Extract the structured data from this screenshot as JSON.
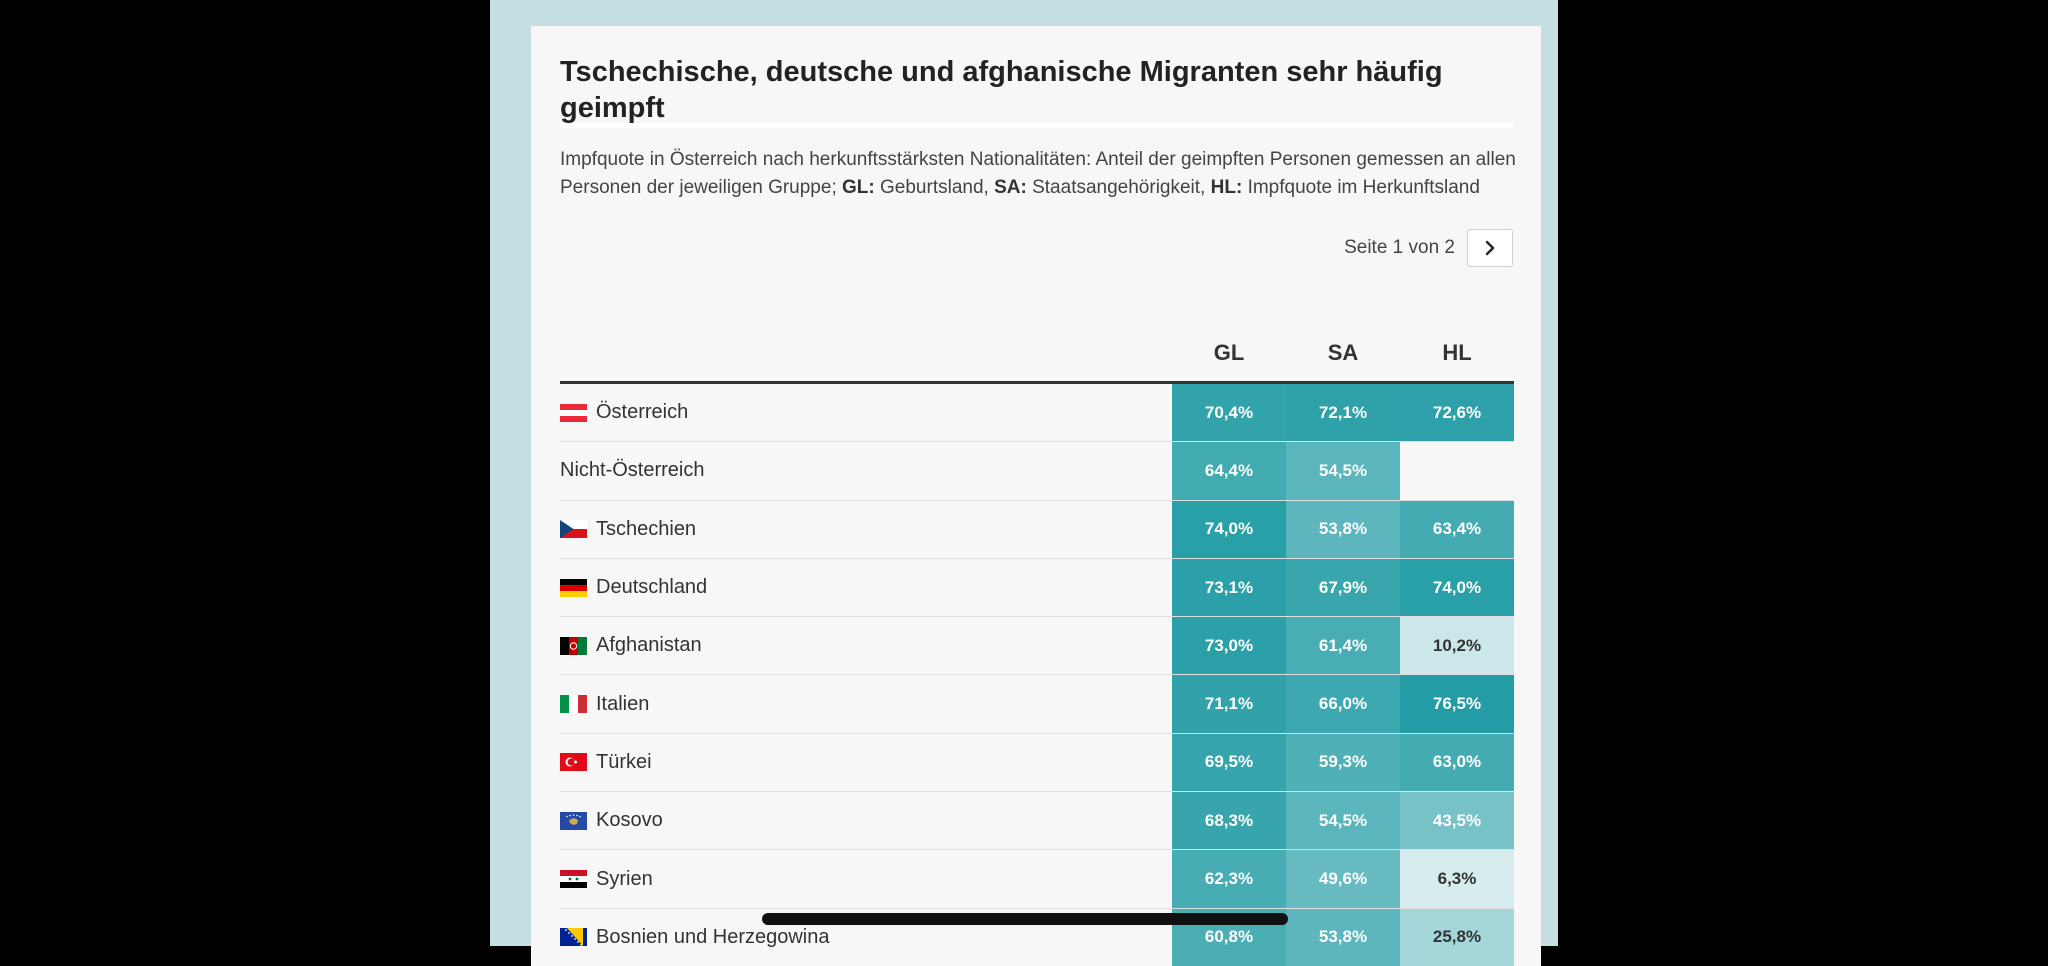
{
  "colors": {
    "background": "#000000",
    "backdrop": "#c5dfe3",
    "card": "#f7f7f7",
    "teal_dark": "#1e9aa3",
    "teal_light": "#e3f1f3"
  },
  "header": {
    "title": "Tschechische, deutsche und afghanische Migranten sehr häufig geimpft",
    "subtitle_text": "Impfquote in Österreich nach herkunftsstärksten Nationalitäten: Anteil der geimpften Personen gemessen an allen Personen der jeweiligen Gruppe;",
    "legend": [
      {
        "key": "GL:",
        "desc": "Geburtsland,"
      },
      {
        "key": "SA:",
        "desc": "Staatsangehörigkeit,"
      },
      {
        "key": "HL:",
        "desc": "Impfquote im Herkunftsland"
      }
    ]
  },
  "pager": {
    "label": "Seite 1 von 2",
    "next_icon": "chevron-right-icon"
  },
  "chart_data": {
    "type": "table",
    "title": "Tschechische, deutsche und afghanische Migranten sehr häufig geimpft",
    "columns": [
      "GL",
      "SA",
      "HL"
    ],
    "rows": [
      {
        "name": "Österreich",
        "flag": "austria",
        "GL": "70,4%",
        "SA": "72,1%",
        "HL": "72,6%",
        "values": [
          70.4,
          72.1,
          72.6
        ]
      },
      {
        "name": "Nicht-Österreich",
        "flag": null,
        "GL": "64,4%",
        "SA": "54,5%",
        "HL": "",
        "values": [
          64.4,
          54.5,
          null
        ]
      },
      {
        "name": "Tschechien",
        "flag": "czech",
        "GL": "74,0%",
        "SA": "53,8%",
        "HL": "63,4%",
        "values": [
          74.0,
          53.8,
          63.4
        ]
      },
      {
        "name": "Deutschland",
        "flag": "germany",
        "GL": "73,1%",
        "SA": "67,9%",
        "HL": "74,0%",
        "values": [
          73.1,
          67.9,
          74.0
        ]
      },
      {
        "name": "Afghanistan",
        "flag": "afghanistan",
        "GL": "73,0%",
        "SA": "61,4%",
        "HL": "10,2%",
        "values": [
          73.0,
          61.4,
          10.2
        ]
      },
      {
        "name": "Italien",
        "flag": "italy",
        "GL": "71,1%",
        "SA": "66,0%",
        "HL": "76,5%",
        "values": [
          71.1,
          66.0,
          76.5
        ]
      },
      {
        "name": "Türkei",
        "flag": "turkey",
        "GL": "69,5%",
        "SA": "59,3%",
        "HL": "63,0%",
        "values": [
          69.5,
          59.3,
          63.0
        ]
      },
      {
        "name": "Kosovo",
        "flag": "kosovo",
        "GL": "68,3%",
        "SA": "54,5%",
        "HL": "43,5%",
        "values": [
          68.3,
          54.5,
          43.5
        ]
      },
      {
        "name": "Syrien",
        "flag": "syria",
        "GL": "62,3%",
        "SA": "49,6%",
        "HL": "6,3%",
        "values": [
          62.3,
          49.6,
          6.3
        ]
      },
      {
        "name": "Bosnien und Herzegowina",
        "flag": "bosnia",
        "GL": "60,8%",
        "SA": "53,8%",
        "HL": "25,8%",
        "values": [
          60.8,
          53.8,
          25.8
        ]
      }
    ]
  }
}
